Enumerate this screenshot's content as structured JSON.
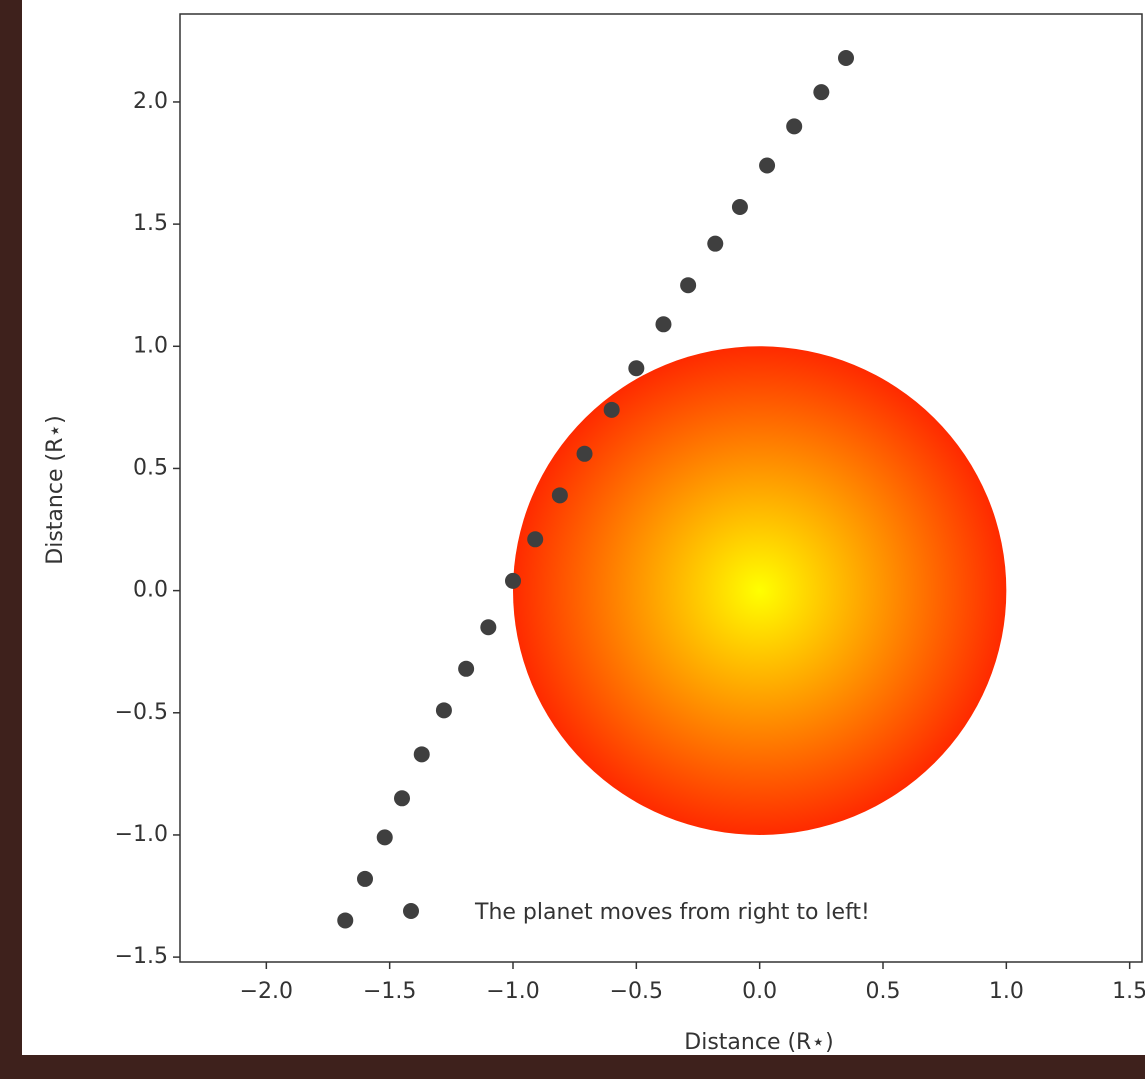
{
  "chart_data": {
    "type": "scatter",
    "xlabel": "Distance (R⋆)",
    "ylabel": "Distance (R⋆)",
    "xlim": [
      -2.35,
      1.55
    ],
    "ylim": [
      -1.52,
      2.36
    ],
    "xticks": [
      {
        "value": -2,
        "label": "−2.0"
      },
      {
        "value": -1.5,
        "label": "−1.5"
      },
      {
        "value": -1,
        "label": "−1.0"
      },
      {
        "value": -0.5,
        "label": "−0.5"
      },
      {
        "value": 0,
        "label": "0.0"
      },
      0.5,
      {
        "value": 1,
        "label": "1.0"
      },
      1.5
    ],
    "yticks": [
      {
        "value": -1.5,
        "label": "−1.5"
      },
      {
        "value": -1,
        "label": "−1.0"
      },
      {
        "value": -0.5,
        "label": "−0.5"
      },
      {
        "value": 0,
        "label": "0.0"
      },
      0.5,
      {
        "value": 1,
        "label": "1.0"
      },
      1.5,
      {
        "value": 2,
        "label": "2.0"
      }
    ],
    "star": {
      "x": 0,
      "y": 0,
      "radius": 1,
      "colors": [
        "#ffff00",
        "#ff2a00"
      ]
    },
    "legend": "lower right",
    "series": [
      {
        "name": "The planet moves from right to left!",
        "color": "#3f3f3f",
        "x": [
          -1.68,
          -1.6,
          -1.52,
          -1.45,
          -1.37,
          -1.28,
          -1.19,
          -1.1,
          -1.0,
          -0.91,
          -0.81,
          -0.71,
          -0.6,
          -0.5,
          -0.39,
          -0.29,
          -0.18,
          -0.08,
          0.03,
          0.14,
          0.25,
          0.35
        ],
        "values": [
          -1.35,
          -1.18,
          -1.01,
          -0.85,
          -0.67,
          -0.49,
          -0.32,
          -0.15,
          0.04,
          0.21,
          0.39,
          0.56,
          0.74,
          0.91,
          1.09,
          1.25,
          1.42,
          1.57,
          1.74,
          1.9,
          2.04,
          2.18
        ]
      }
    ]
  }
}
